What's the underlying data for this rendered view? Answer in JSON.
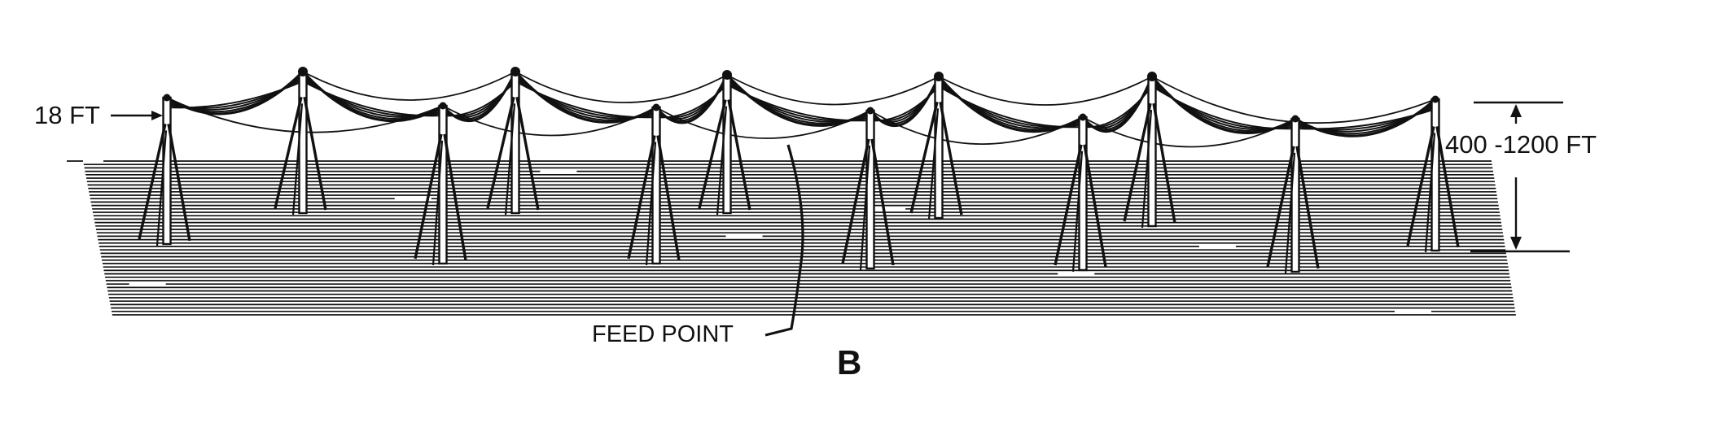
{
  "labels": {
    "height": "18 FT",
    "span": "400 -1200 FT",
    "feed_point": "FEED POINT",
    "figure": "B"
  },
  "colors": {
    "ink": "#111111",
    "paper": "#ffffff"
  }
}
